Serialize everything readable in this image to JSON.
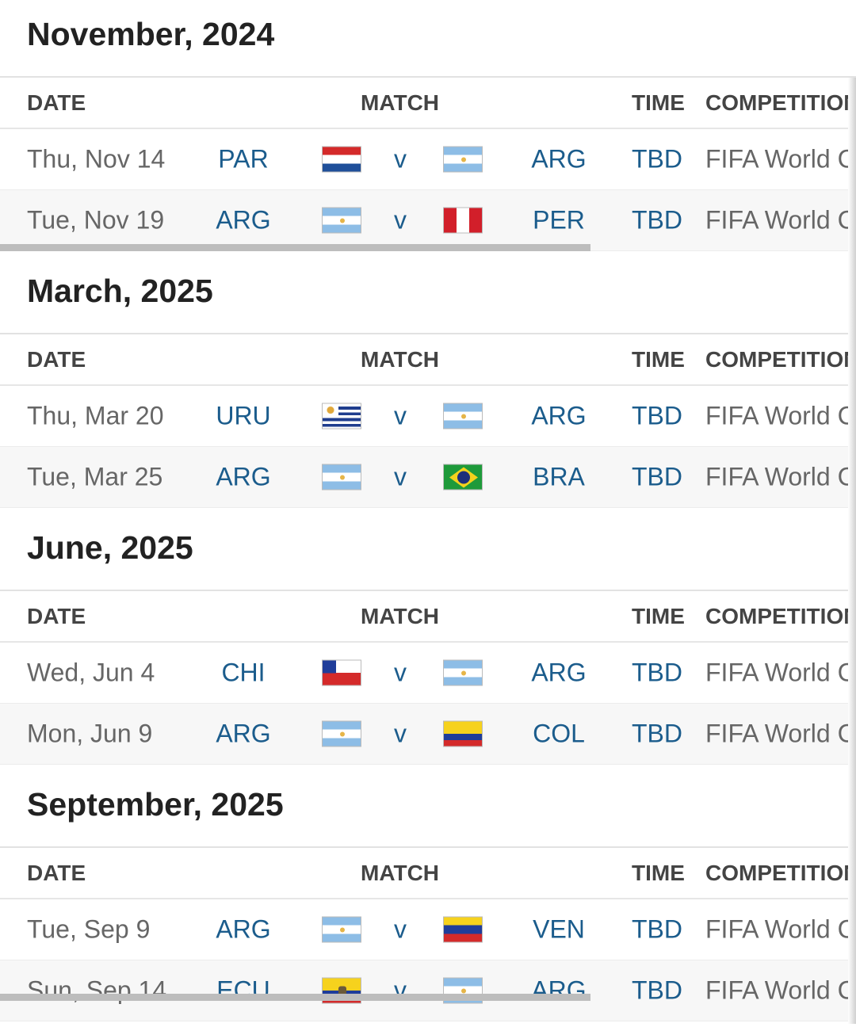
{
  "headers": {
    "date": "DATE",
    "match": "MATCH",
    "time": "TIME",
    "competition": "COMPETITION"
  },
  "sections": [
    {
      "title": "November, 2024",
      "rows": [
        {
          "date": "Thu, Nov 14",
          "home": "PAR",
          "home_flag": "paraguay-flag",
          "vs": "v",
          "away": "ARG",
          "away_flag": "argentina-flag",
          "time": "TBD",
          "competition": "FIFA World C"
        },
        {
          "date": "Tue, Nov 19",
          "home": "ARG",
          "home_flag": "argentina-flag",
          "vs": "v",
          "away": "PER",
          "away_flag": "peru-flag",
          "time": "TBD",
          "competition": "FIFA World C"
        }
      ]
    },
    {
      "title": "March, 2025",
      "rows": [
        {
          "date": "Thu, Mar 20",
          "home": "URU",
          "home_flag": "uruguay-flag",
          "vs": "v",
          "away": "ARG",
          "away_flag": "argentina-flag",
          "time": "TBD",
          "competition": "FIFA World C"
        },
        {
          "date": "Tue, Mar 25",
          "home": "ARG",
          "home_flag": "argentina-flag",
          "vs": "v",
          "away": "BRA",
          "away_flag": "brazil-flag",
          "time": "TBD",
          "competition": "FIFA World C"
        }
      ]
    },
    {
      "title": "June, 2025",
      "rows": [
        {
          "date": "Wed, Jun 4",
          "home": "CHI",
          "home_flag": "chile-flag",
          "vs": "v",
          "away": "ARG",
          "away_flag": "argentina-flag",
          "time": "TBD",
          "competition": "FIFA World C"
        },
        {
          "date": "Mon, Jun 9",
          "home": "ARG",
          "home_flag": "argentina-flag",
          "vs": "v",
          "away": "COL",
          "away_flag": "colombia-flag",
          "time": "TBD",
          "competition": "FIFA World C"
        }
      ]
    },
    {
      "title": "September, 2025",
      "rows": [
        {
          "date": "Tue, Sep 9",
          "home": "ARG",
          "home_flag": "argentina-flag",
          "vs": "v",
          "away": "VEN",
          "away_flag": "venezuela-flag",
          "time": "TBD",
          "competition": "FIFA World C"
        },
        {
          "date": "Sun, Sep 14",
          "home": "ECU",
          "home_flag": "ecuador-flag",
          "vs": "v",
          "away": "ARG",
          "away_flag": "argentina-flag",
          "time": "TBD",
          "competition": "FIFA World C"
        }
      ]
    }
  ],
  "colors": {
    "team_link": "#1b5c8c",
    "date_text": "#666666",
    "title": "#222222"
  }
}
